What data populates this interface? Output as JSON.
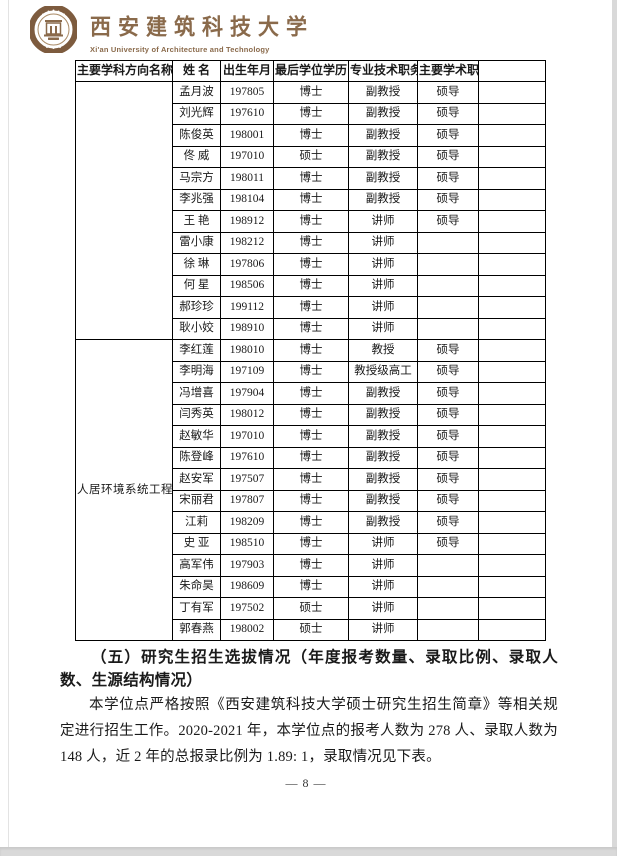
{
  "header": {
    "university_cn": "西安建筑科技大学",
    "university_en": "Xi'an University of Architecture and Technology"
  },
  "table": {
    "headers": [
      "主要学科方向名称",
      "姓  名",
      "出生年月",
      "最后学位学历",
      "专业技术职务",
      "主要学术职",
      ""
    ],
    "sections": [
      {
        "discipline": "",
        "rows": [
          [
            "孟月波",
            "197805",
            "博士",
            "副教授",
            "硕导"
          ],
          [
            "刘光辉",
            "197610",
            "博士",
            "副教授",
            "硕导"
          ],
          [
            "陈俊英",
            "198001",
            "博士",
            "副教授",
            "硕导"
          ],
          [
            "佟  威",
            "197010",
            "硕士",
            "副教授",
            "硕导"
          ],
          [
            "马宗方",
            "198011",
            "博士",
            "副教授",
            "硕导"
          ],
          [
            "李兆强",
            "198104",
            "博士",
            "副教授",
            "硕导"
          ],
          [
            "王  艳",
            "198912",
            "博士",
            "讲师",
            "硕导"
          ],
          [
            "雷小康",
            "198212",
            "博士",
            "讲师",
            ""
          ],
          [
            "徐  琳",
            "197806",
            "博士",
            "讲师",
            ""
          ],
          [
            "何  星",
            "198506",
            "博士",
            "讲师",
            ""
          ],
          [
            "郝珍珍",
            "199112",
            "博士",
            "讲师",
            ""
          ],
          [
            "耿小姣",
            "198910",
            "博士",
            "讲师",
            ""
          ]
        ]
      },
      {
        "discipline": "人居环境系统工程",
        "rows": [
          [
            "李红莲",
            "198010",
            "博士",
            "教授",
            "硕导"
          ],
          [
            "李明海",
            "197109",
            "博士",
            "教授级高工",
            "硕导"
          ],
          [
            "冯增喜",
            "197904",
            "博士",
            "副教授",
            "硕导"
          ],
          [
            "闫秀英",
            "198012",
            "博士",
            "副教授",
            "硕导"
          ],
          [
            "赵敏华",
            "197010",
            "博士",
            "副教授",
            "硕导"
          ],
          [
            "陈登峰",
            "197610",
            "博士",
            "副教授",
            "硕导"
          ],
          [
            "赵安军",
            "197507",
            "博士",
            "副教授",
            "硕导"
          ],
          [
            "宋丽君",
            "197807",
            "博士",
            "副教授",
            "硕导"
          ],
          [
            "江莉",
            "198209",
            "博士",
            "副教授",
            "硕导"
          ],
          [
            "史  亚",
            "198510",
            "博士",
            "讲师",
            "硕导"
          ],
          [
            "高军伟",
            "197903",
            "博士",
            "讲师",
            ""
          ],
          [
            "朱命昊",
            "198609",
            "博士",
            "讲师",
            ""
          ],
          [
            "丁有军",
            "197502",
            "硕士",
            "讲师",
            ""
          ],
          [
            "郭春燕",
            "198002",
            "硕士",
            "讲师",
            ""
          ]
        ]
      }
    ]
  },
  "section_heading": "（五）研究生招生选拔情况（年度报考数量、录取比例、录取人数、生源结构情况）",
  "paragraph": "本学位点严格按照《西安建筑科技大学硕士研究生招生简章》等相关规定进行招生工作。2020-2021 年，本学位点的报考人数为 278 人、录取人数为 148 人，近 2 年的总报录比例为 1.89:  1，录取情况见下表。",
  "page_number": "— 8 —",
  "colors": {
    "brand_brown": "#8a6a4b",
    "table_border": "#000000",
    "viewer_gray": "#d9d9d9"
  }
}
